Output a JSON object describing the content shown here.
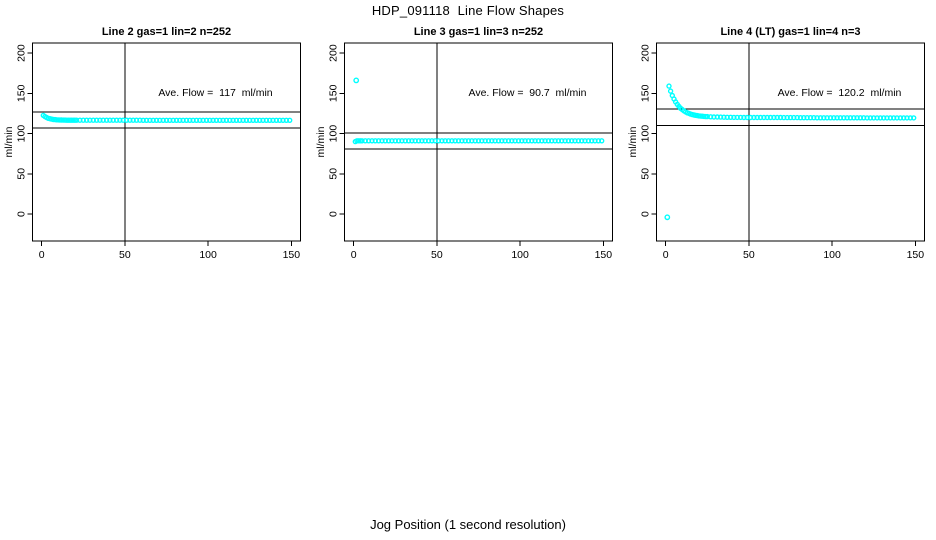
{
  "page": {
    "main_title": "HDP_091118  Line Flow Shapes",
    "shared_x_label": "Jog Position (1 second resolution)",
    "background_color": "#ffffff",
    "line_color": "#000000",
    "point_color": "#00ffff"
  },
  "chart_data": [
    {
      "type": "scatter",
      "title": "Line 2 gas=1 lin=2 n=252",
      "ylabel": "ml/min",
      "annotation": "Ave. Flow =  117  ml/min",
      "ave_flow_ml_min": 117,
      "n": 252,
      "xlim": [
        -5.5,
        155.5
      ],
      "ylim": [
        -33.5,
        212.5
      ],
      "x_ticks": [
        0,
        50,
        100,
        150
      ],
      "y_ticks": [
        0,
        50,
        100,
        150,
        200
      ],
      "grid": false,
      "legend": "none",
      "marker": "open-circle",
      "marker_color": "#00ffff",
      "reference_lines": {
        "horizontal": [
          127.0,
          107.0
        ],
        "vertical": [
          50
        ]
      },
      "series": [
        {
          "x_start": 1,
          "x_step": 1,
          "y": [
            122.5,
            121.0,
            119.9,
            119.0,
            118.4,
            117.9,
            117.5,
            117.3,
            117.1,
            116.9,
            116.8,
            116.8,
            116.7,
            116.7,
            116.6,
            116.6,
            116.6,
            116.6,
            116.6,
            116.6
          ]
        },
        {
          "x_start": 21,
          "x_step": 2,
          "y": [
            116.6,
            116.6,
            116.6,
            116.6,
            116.6,
            116.6,
            116.6,
            116.6,
            116.6,
            116.6,
            116.6,
            116.6,
            116.6,
            116.6,
            116.6,
            116.6,
            116.6,
            116.6,
            116.6,
            116.6,
            116.5,
            116.5,
            116.5,
            116.5,
            116.5,
            116.5,
            116.5,
            116.5,
            116.5,
            116.5,
            116.5,
            116.5,
            116.5,
            116.5,
            116.5,
            116.5,
            116.5,
            116.5,
            116.5,
            116.5,
            116.5,
            116.5,
            116.5,
            116.5,
            116.5,
            116.5,
            116.5,
            116.5,
            116.5,
            116.5,
            116.5,
            116.5,
            116.5,
            116.5,
            116.5,
            116.5,
            116.5,
            116.5,
            116.5,
            116.5,
            116.5,
            116.5,
            116.5,
            116.5,
            116.5
          ]
        }
      ],
      "outliers": []
    },
    {
      "type": "scatter",
      "title": "Line 3 gas=1 lin=3 n=252",
      "ylabel": "ml/min",
      "annotation": "Ave. Flow =  90.7  ml/min",
      "ave_flow_ml_min": 90.7,
      "n": 252,
      "xlim": [
        -5.5,
        155.5
      ],
      "ylim": [
        -33.5,
        212.5
      ],
      "x_ticks": [
        0,
        50,
        100,
        150
      ],
      "y_ticks": [
        0,
        50,
        100,
        150,
        200
      ],
      "grid": false,
      "legend": "none",
      "marker": "open-circle",
      "marker_color": "#00ffff",
      "reference_lines": {
        "horizontal": [
          100.7,
          80.7
        ],
        "vertical": [
          50
        ]
      },
      "series": [
        {
          "x_start": 1,
          "x_step": 1,
          "y": [
            90.0,
            91.0,
            91.0,
            91.0
          ]
        },
        {
          "x_start": 5,
          "x_step": 2,
          "y": [
            91.0,
            91.0,
            91.0,
            91.0,
            91.0,
            91.0,
            91.0,
            91.0,
            91.0,
            91.0,
            91.0,
            91.0,
            91.0,
            91.0,
            91.0,
            91.0,
            91.0,
            91.0,
            91.0,
            91.0,
            91.0,
            91.0,
            91.0,
            91.0,
            91.0,
            91.0,
            91.0,
            91.0,
            91.0,
            91.0,
            91.0,
            91.0,
            91.0,
            91.0,
            91.0,
            91.0,
            91.0,
            91.0,
            91.0,
            91.0,
            91.0,
            91.0,
            91.0,
            91.0,
            91.0,
            91.0,
            91.0,
            91.0,
            91.0,
            91.0,
            91.0,
            91.0,
            91.0,
            91.0,
            91.0,
            91.0,
            91.0,
            91.0,
            91.0,
            91.0,
            91.0,
            91.0,
            91.0,
            91.0,
            91.0,
            91.0,
            91.0,
            91.0,
            91.0,
            91.0,
            91.0,
            91.0,
            91.0
          ]
        }
      ],
      "outliers": [
        [
          1.5,
          166.0
        ]
      ]
    },
    {
      "type": "scatter",
      "title": "Line 4 (LT) gas=1 lin=4 n=3",
      "ylabel": "ml/min",
      "annotation": "Ave. Flow =  120.2  ml/min",
      "ave_flow_ml_min": 120.2,
      "n": 3,
      "xlim": [
        -5.5,
        155.5
      ],
      "ylim": [
        -33.5,
        212.5
      ],
      "x_ticks": [
        0,
        50,
        100,
        150
      ],
      "y_ticks": [
        0,
        50,
        100,
        150,
        200
      ],
      "grid": false,
      "legend": "none",
      "marker": "open-circle",
      "marker_color": "#00ffff",
      "reference_lines": {
        "horizontal": [
          130.2,
          110.2
        ],
        "vertical": [
          50
        ]
      },
      "series": [
        {
          "x_start": 2,
          "x_step": 1,
          "y": [
            159.0,
            152.7,
            147.3,
            142.9,
            139.3,
            136.2,
            133.6,
            131.4,
            129.7,
            128.1,
            126.9,
            125.8,
            125.0,
            124.2,
            123.6,
            123.1,
            122.7,
            122.3,
            121.9,
            121.7,
            121.5,
            121.3,
            121.1,
            121.0
          ]
        },
        {
          "x_start": 27,
          "x_step": 2,
          "y": [
            120.8,
            120.6,
            120.5,
            120.4,
            120.3,
            120.2,
            120.2,
            120.1,
            120.1,
            120.1,
            120.0,
            120.0,
            119.9,
            119.9,
            119.9,
            119.9,
            119.9,
            119.9,
            119.9,
            119.9,
            119.9,
            119.9,
            119.8,
            119.8,
            119.8,
            119.8,
            119.8,
            119.7,
            119.7,
            119.7,
            119.7,
            119.7,
            119.6,
            119.6,
            119.6,
            119.6,
            119.6,
            119.6,
            119.6,
            119.6,
            119.6,
            119.6,
            119.6,
            119.6,
            119.6,
            119.6,
            119.6,
            119.5,
            119.5,
            119.5,
            119.5,
            119.5,
            119.5,
            119.5,
            119.5,
            119.5,
            119.5,
            119.5,
            119.5,
            119.5,
            119.5,
            119.5
          ]
        }
      ],
      "outliers": [
        [
          1.0,
          -4.0
        ]
      ]
    }
  ]
}
